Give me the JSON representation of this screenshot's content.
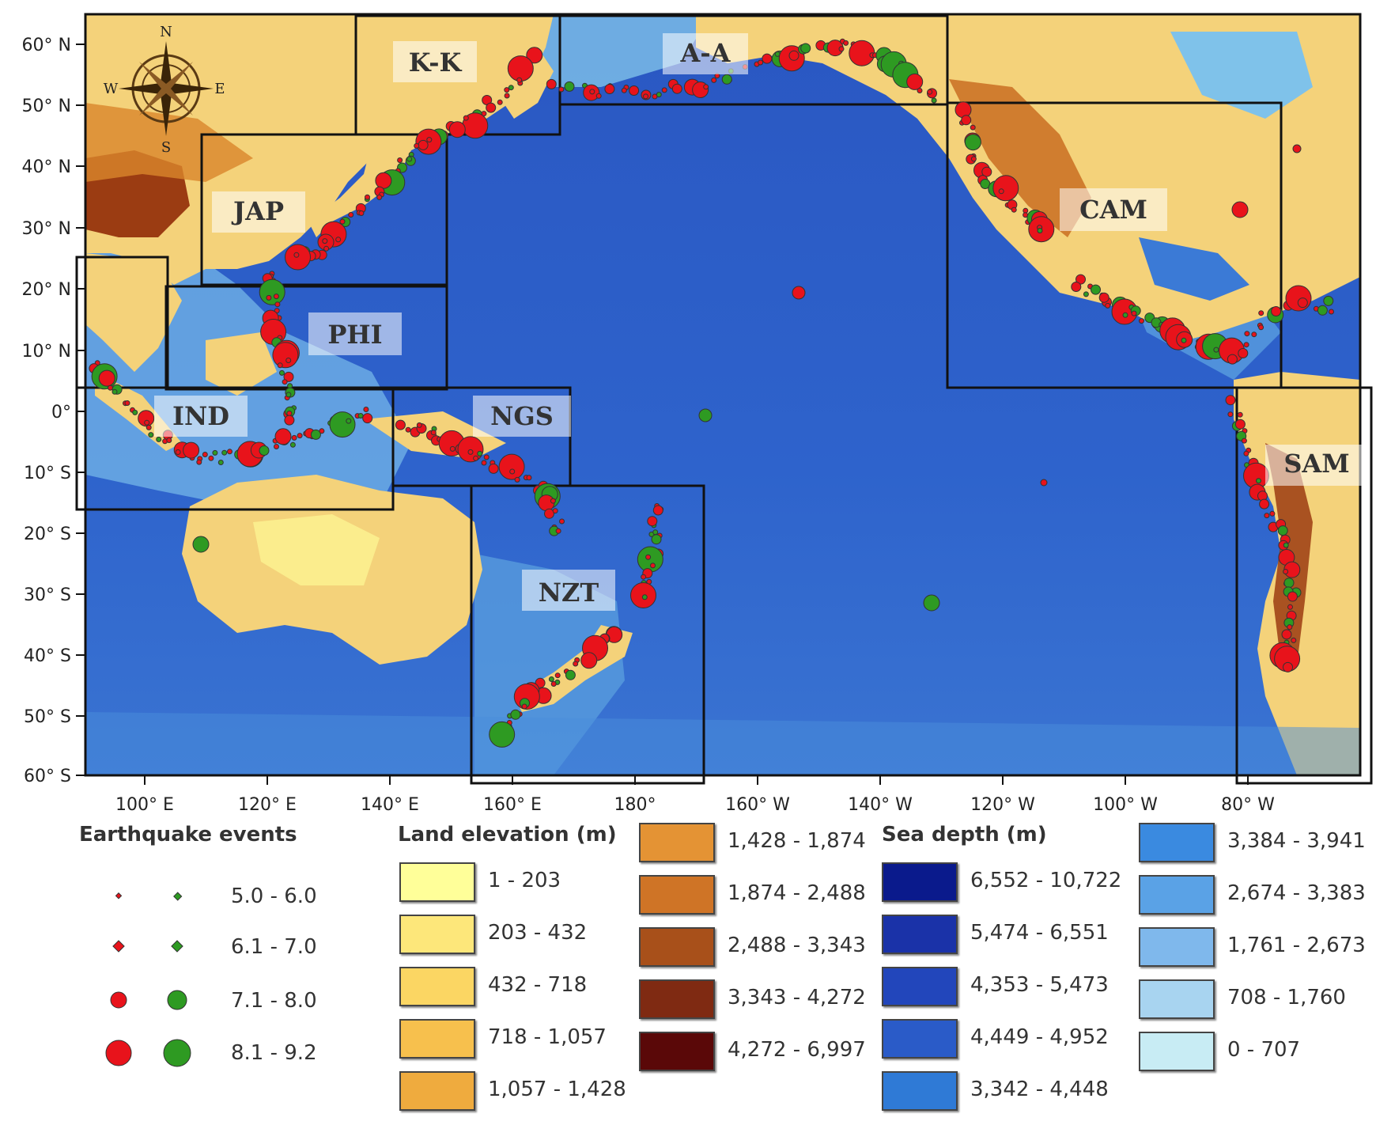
{
  "map": {
    "latitude_labels": [
      "60° N",
      "50° N",
      "40° N",
      "30° N",
      "20° N",
      "10° N",
      "0°",
      "10° S",
      "20° S",
      "30° S",
      "40° S",
      "50° S",
      "60° S"
    ],
    "longitude_labels": [
      "100° E",
      "120° E",
      "140° E",
      "160° E",
      "180°",
      "160° W",
      "140° W",
      "120° W",
      "100° W",
      "80° W"
    ],
    "compass": {
      "n": "N",
      "s": "S",
      "e": "E",
      "w": "W"
    },
    "regions": [
      {
        "code": "K-K"
      },
      {
        "code": "A-A"
      },
      {
        "code": "JAP"
      },
      {
        "code": "PHI"
      },
      {
        "code": "IND"
      },
      {
        "code": "NGS"
      },
      {
        "code": "CAM"
      },
      {
        "code": "SAM"
      },
      {
        "code": "NZT"
      }
    ],
    "event_colors": {
      "red": "#e8131b",
      "green": "#2e9a22"
    },
    "land_color": "#f4d27a",
    "ocean_color": "#2d5fc8"
  },
  "legend": {
    "earthquake_title": "Earthquake events",
    "magnitudes": [
      "5.0 - 6.0",
      "6.1 - 7.0",
      "7.1 - 8.0",
      "8.1 - 9.2"
    ],
    "land_title": "Land elevation (m)",
    "land_classes": [
      {
        "range": "1 - 203",
        "color": "#ffff99"
      },
      {
        "range": "203 - 432",
        "color": "#fde77a"
      },
      {
        "range": "432 - 718",
        "color": "#fbd663"
      },
      {
        "range": "718 - 1,057",
        "color": "#f7c04d"
      },
      {
        "range": "1,057 - 1,428",
        "color": "#efab3e"
      },
      {
        "range": "1,428 - 1,874",
        "color": "#e49334"
      },
      {
        "range": "1,874 - 2,488",
        "color": "#cf7426"
      },
      {
        "range": "2,488 - 3,343",
        "color": "#a8501a"
      },
      {
        "range": "3,343 - 4,272",
        "color": "#7f2a12"
      },
      {
        "range": "4,272 - 6,997",
        "color": "#5a0808"
      }
    ],
    "sea_title": "Sea depth (m)",
    "sea_classes": [
      {
        "range": "6,552 - 10,722",
        "color": "#0a1a8c"
      },
      {
        "range": "5,474 - 6,551",
        "color": "#1a32a8"
      },
      {
        "range": "4,353 - 5,473",
        "color": "#2246bb"
      },
      {
        "range": "4,449 - 4,952",
        "color": "#2a5bc8"
      },
      {
        "range": "3,342 - 4,448",
        "color": "#2f7ad6"
      },
      {
        "range": "3,384 - 3,941",
        "color": "#3a8ae0"
      },
      {
        "range": "2,674 - 3,383",
        "color": "#5aa2e6"
      },
      {
        "range": "1,761 - 2,673",
        "color": "#7fb8ec"
      },
      {
        "range": "708 - 1,760",
        "color": "#a8d4f0"
      },
      {
        "range": "0 - 707",
        "color": "#c8ecf4"
      }
    ]
  }
}
